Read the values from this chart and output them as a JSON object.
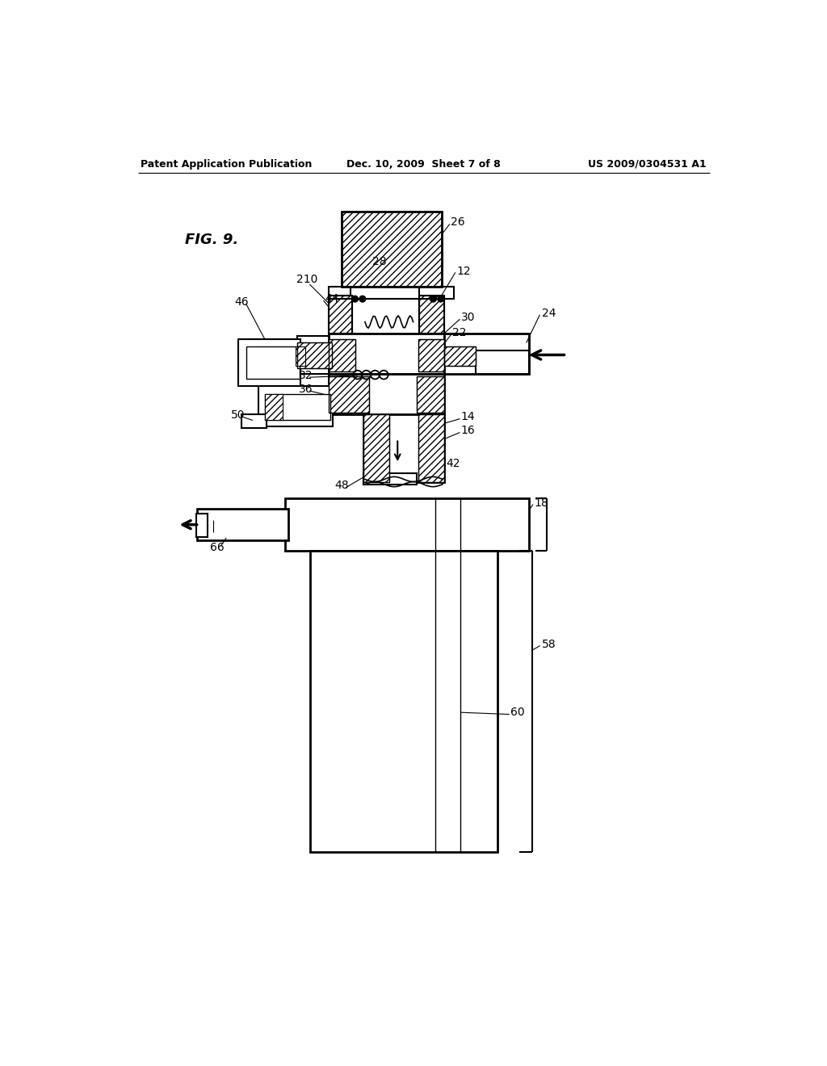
{
  "title_left": "Patent Application Publication",
  "title_center": "Dec. 10, 2009  Sheet 7 of 8",
  "title_right": "US 2009/0304531 A1",
  "fig_label": "FIG. 9.",
  "bg_color": "#ffffff",
  "line_color": "#000000"
}
